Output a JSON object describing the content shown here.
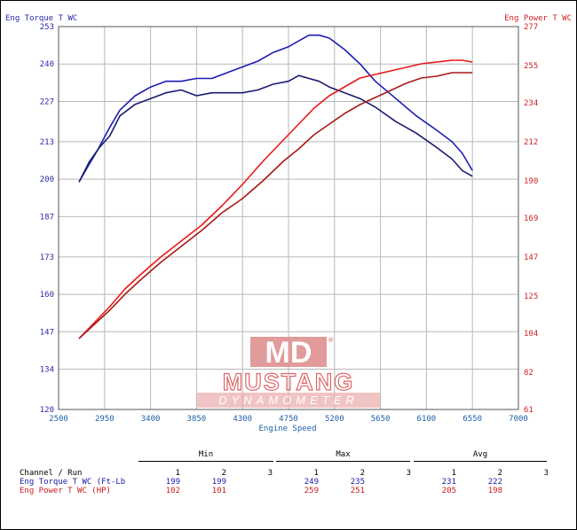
{
  "chart_data": {
    "type": "line",
    "xlabel": "Engine Speed",
    "ylabel_left": "Eng Torque T WC",
    "ylabel_right": "Eng Power T WC",
    "x_ticks": [
      2500,
      2950,
      3400,
      3850,
      4300,
      4750,
      5200,
      5650,
      6100,
      6550,
      7000
    ],
    "xlim": [
      2500,
      7000
    ],
    "y_left_ticks": [
      120,
      134,
      147,
      160,
      173,
      187,
      200,
      213,
      227,
      240,
      253
    ],
    "y_left_lim": [
      120,
      253
    ],
    "y_right_ticks": [
      61,
      82,
      104,
      125,
      147,
      169,
      190,
      212,
      234,
      255,
      277
    ],
    "y_right_lim": [
      61,
      277
    ],
    "grid": true,
    "colors": {
      "torque": "#1a1aa8",
      "power": "#cc1a1a",
      "left_axis": "#2a2aa8",
      "right_axis": "#cc2222",
      "x_axis": "#1e5fa8"
    },
    "series": [
      {
        "axis": "left",
        "color": "#1d1db4",
        "x": [
          2700,
          2780,
          2880,
          3000,
          3100,
          3250,
          3400,
          3550,
          3700,
          3850,
          4000,
          4150,
          4300,
          4450,
          4600,
          4750,
          4850,
          4950,
          5050,
          5150,
          5300,
          5450,
          5600,
          5800,
          6000,
          6200,
          6350,
          6450,
          6550
        ],
        "y": [
          199,
          204,
          210,
          218,
          224,
          229,
          232,
          234,
          234,
          235,
          235,
          237,
          239,
          241,
          244,
          246,
          248,
          250,
          250,
          249,
          245,
          240,
          234,
          228,
          222,
          217,
          213,
          209,
          203
        ]
      },
      {
        "axis": "left",
        "color": "#1a1a70",
        "x": [
          2700,
          2800,
          2900,
          3000,
          3100,
          3250,
          3400,
          3550,
          3700,
          3850,
          4000,
          4150,
          4300,
          4450,
          4600,
          4750,
          4850,
          4950,
          5050,
          5150,
          5300,
          5450,
          5600,
          5800,
          6000,
          6200,
          6350,
          6450,
          6550
        ],
        "y": [
          199,
          206,
          211,
          215,
          222,
          226,
          228,
          230,
          231,
          229,
          230,
          230,
          230,
          231,
          233,
          234,
          236,
          235,
          234,
          232,
          230,
          228,
          225,
          220,
          216,
          211,
          207,
          203,
          201
        ]
      },
      {
        "axis": "right",
        "color": "#e81818",
        "x": [
          2700,
          2850,
          3000,
          3150,
          3300,
          3500,
          3700,
          3900,
          4100,
          4300,
          4500,
          4700,
          4850,
          5000,
          5150,
          5300,
          5450,
          5600,
          5750,
          5900,
          6050,
          6200,
          6350,
          6450,
          6550
        ],
        "y": [
          101,
          110,
          119,
          129,
          137,
          147,
          156,
          165,
          176,
          188,
          201,
          213,
          222,
          231,
          238,
          243,
          248,
          250,
          252,
          254,
          256,
          257,
          258,
          258,
          257
        ]
      },
      {
        "axis": "right",
        "color": "#a81a1a",
        "x": [
          2700,
          2850,
          3000,
          3150,
          3300,
          3500,
          3700,
          3900,
          4100,
          4300,
          4500,
          4700,
          4850,
          5000,
          5150,
          5300,
          5450,
          5600,
          5750,
          5900,
          6050,
          6200,
          6350,
          6450,
          6550
        ],
        "y": [
          101,
          109,
          117,
          126,
          134,
          144,
          153,
          162,
          172,
          180,
          190,
          201,
          208,
          216,
          222,
          228,
          233,
          237,
          241,
          245,
          248,
          249,
          251,
          251,
          251
        ]
      }
    ]
  },
  "table": {
    "groups": [
      "Min",
      "Max",
      "Avg"
    ],
    "channel_header": "Channel / Run",
    "runs": [
      "1",
      "2",
      "3"
    ],
    "rows": [
      {
        "label": "Eng Torque T WC (Ft-Lb",
        "color": "#1a1aa8",
        "min": [
          "199",
          "199",
          ""
        ],
        "max": [
          "249",
          "235",
          ""
        ],
        "avg": [
          "231",
          "222",
          ""
        ]
      },
      {
        "label": "Eng Power T WC (HP)",
        "color": "#cc1a1a",
        "min": [
          "102",
          "101",
          ""
        ],
        "max": [
          "259",
          "251",
          ""
        ],
        "avg": [
          "205",
          "198",
          ""
        ]
      }
    ]
  },
  "logo": {
    "mark": "MD",
    "name": "MUSTANG",
    "sub": "DYNAMOMETER",
    "reg": "®"
  }
}
